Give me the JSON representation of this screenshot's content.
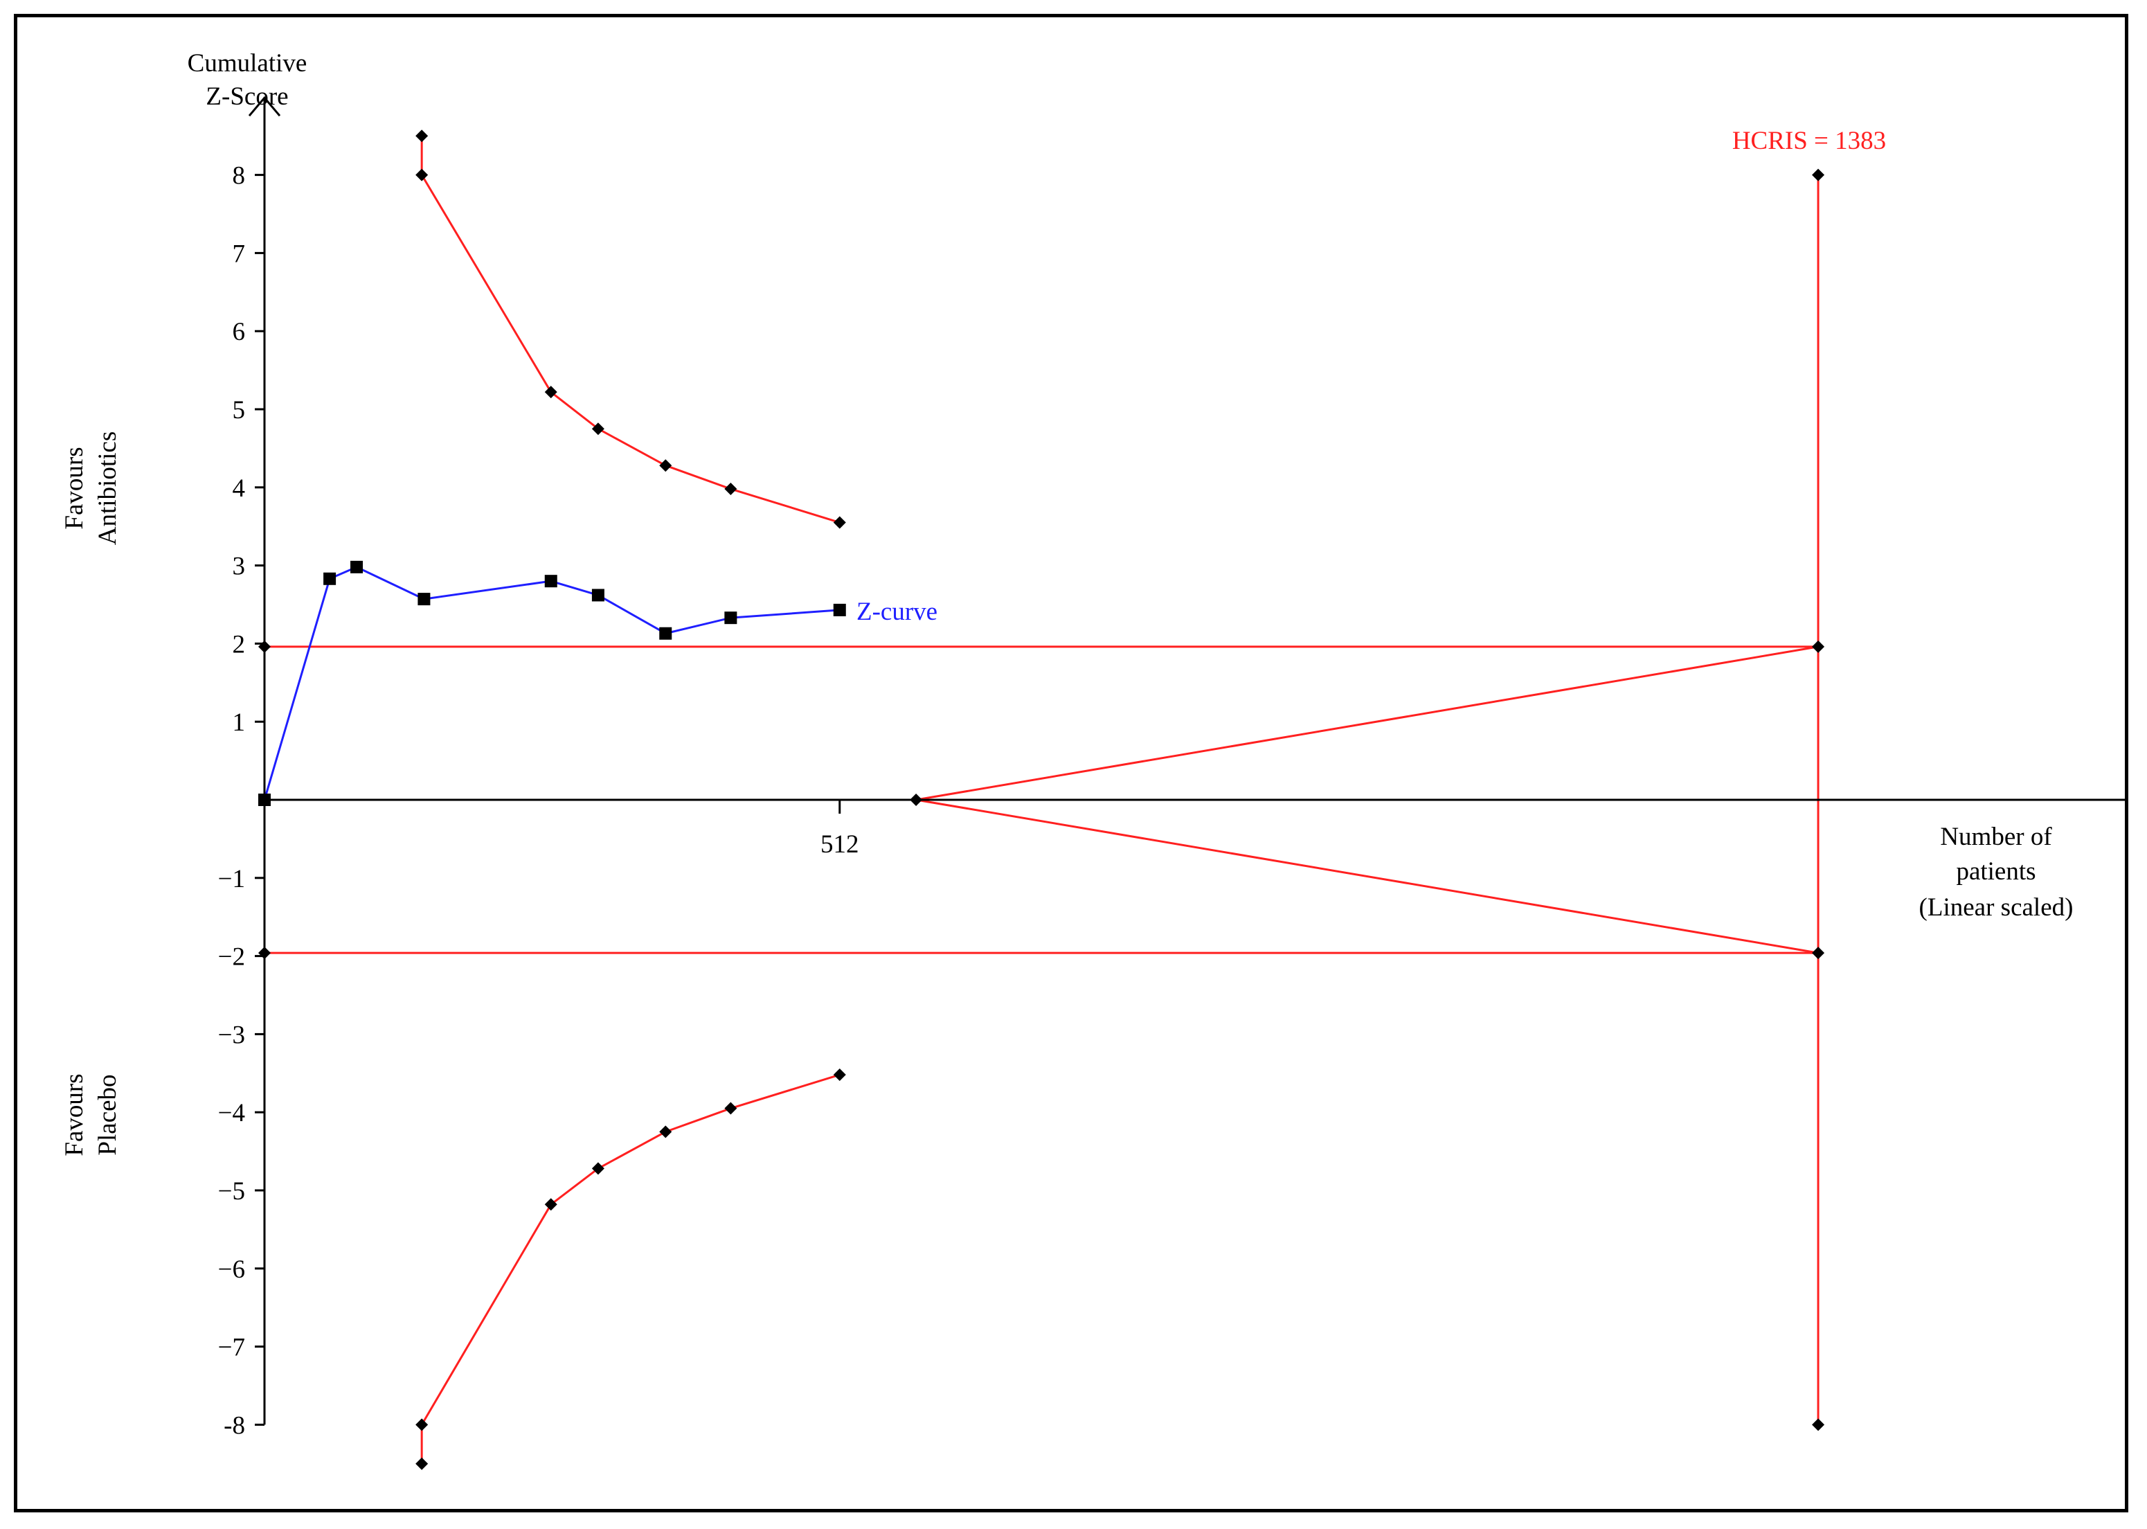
{
  "chart_data": {
    "type": "line",
    "title": "",
    "ylabel_lines": [
      "Cumulative",
      "Z-Score"
    ],
    "xlabel_lines": [
      "Number of",
      "patients",
      "(Linear scaled)"
    ],
    "side_label_upper": [
      "Favours",
      "Antibiotics"
    ],
    "side_label_lower": [
      "Favours",
      "Placebo"
    ],
    "y_ticks": [
      8,
      7,
      6,
      5,
      4,
      3,
      2,
      1,
      -1,
      -2,
      -3,
      -4,
      -5,
      -6,
      -7,
      -8
    ],
    "y_tick_labels": [
      "8",
      "7",
      "6",
      "5",
      "4",
      "3",
      "2",
      "1",
      "−1",
      "−2",
      "−3",
      "−4",
      "−5",
      "−6",
      "−7",
      "-8"
    ],
    "x_ticks": [
      {
        "value": 512,
        "label": "512"
      }
    ],
    "xlim": [
      0,
      1560
    ],
    "ylim": [
      -8.5,
      8.5
    ],
    "colors": {
      "z_curve": "#1f1fff",
      "boundary": "#ff2020",
      "axis": "#000000"
    },
    "series": [
      {
        "name": "Z-curve",
        "marker": "square",
        "points": [
          [
            0,
            0
          ],
          [
            58,
            2.83
          ],
          [
            82,
            2.98
          ],
          [
            142,
            2.57
          ],
          [
            255,
            2.8
          ],
          [
            297,
            2.62
          ],
          [
            357,
            2.13
          ],
          [
            415,
            2.33
          ],
          [
            512,
            2.43
          ]
        ]
      }
    ],
    "boundaries": {
      "upper_monitoring": [
        [
          140,
          8.5
        ],
        [
          140,
          8.0
        ],
        [
          255,
          5.22
        ],
        [
          297,
          4.75
        ],
        [
          357,
          4.28
        ],
        [
          415,
          3.98
        ],
        [
          512,
          3.55
        ]
      ],
      "lower_monitoring": [
        [
          140,
          -8.5
        ],
        [
          140,
          -8.0
        ],
        [
          255,
          -5.18
        ],
        [
          297,
          -4.72
        ],
        [
          357,
          -4.25
        ],
        [
          415,
          -3.95
        ],
        [
          512,
          -3.52
        ]
      ],
      "futility": [
        [
          580,
          0
        ],
        [
          1383,
          1.96
        ],
        [
          580,
          0
        ],
        [
          1383,
          -1.96
        ]
      ],
      "conventional_upper": [
        [
          0,
          1.96
        ],
        [
          1383,
          1.96
        ]
      ],
      "conventional_lower": [
        [
          0,
          -1.96
        ],
        [
          1383,
          -1.96
        ]
      ],
      "information_size_line": [
        [
          1383,
          8.0
        ],
        [
          1383,
          -8.0
        ]
      ]
    },
    "information_size_label": "HCRIS = 1383",
    "information_size": 1383
  }
}
